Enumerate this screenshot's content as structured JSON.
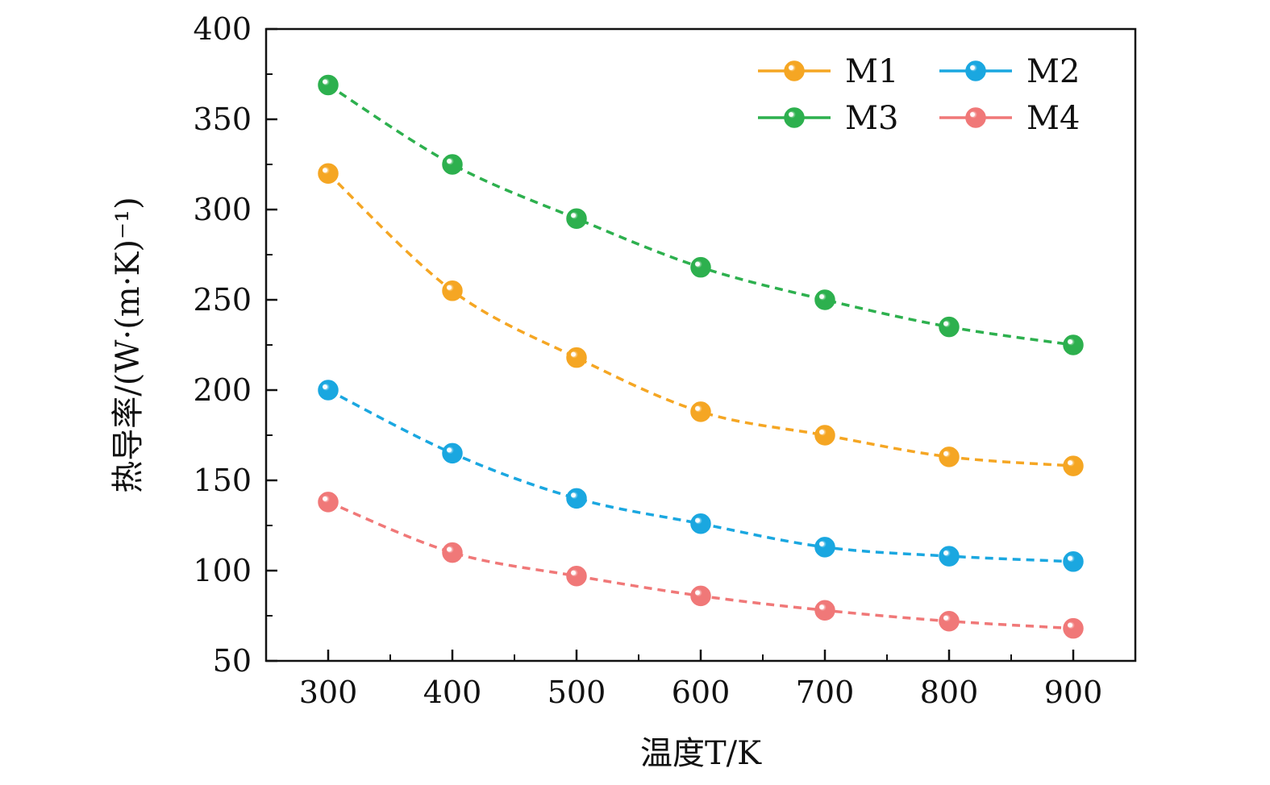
{
  "chart_data": {
    "type": "line",
    "xlabel": "温度T/K",
    "ylabel": "热导率/(W·(m·K)⁻¹)",
    "x": [
      300,
      400,
      500,
      600,
      700,
      800,
      900
    ],
    "xlim": [
      250,
      950
    ],
    "ylim": [
      50,
      400
    ],
    "xticks": [
      300,
      400,
      500,
      600,
      700,
      800,
      900
    ],
    "yticks": [
      50,
      100,
      150,
      200,
      250,
      300,
      350,
      400
    ],
    "legend_position": "top-right",
    "grid": false,
    "series": [
      {
        "name": "M1",
        "color": "#F5A623",
        "values": [
          320,
          255,
          218,
          188,
          175,
          163,
          158
        ]
      },
      {
        "name": "M2",
        "color": "#1AA7E0",
        "values": [
          200,
          165,
          140,
          126,
          113,
          108,
          105
        ]
      },
      {
        "name": "M3",
        "color": "#2DB04E",
        "values": [
          369,
          325,
          295,
          268,
          250,
          235,
          225
        ]
      },
      {
        "name": "M4",
        "color": "#F07878",
        "values": [
          138,
          110,
          97,
          86,
          78,
          72,
          68
        ]
      }
    ]
  }
}
